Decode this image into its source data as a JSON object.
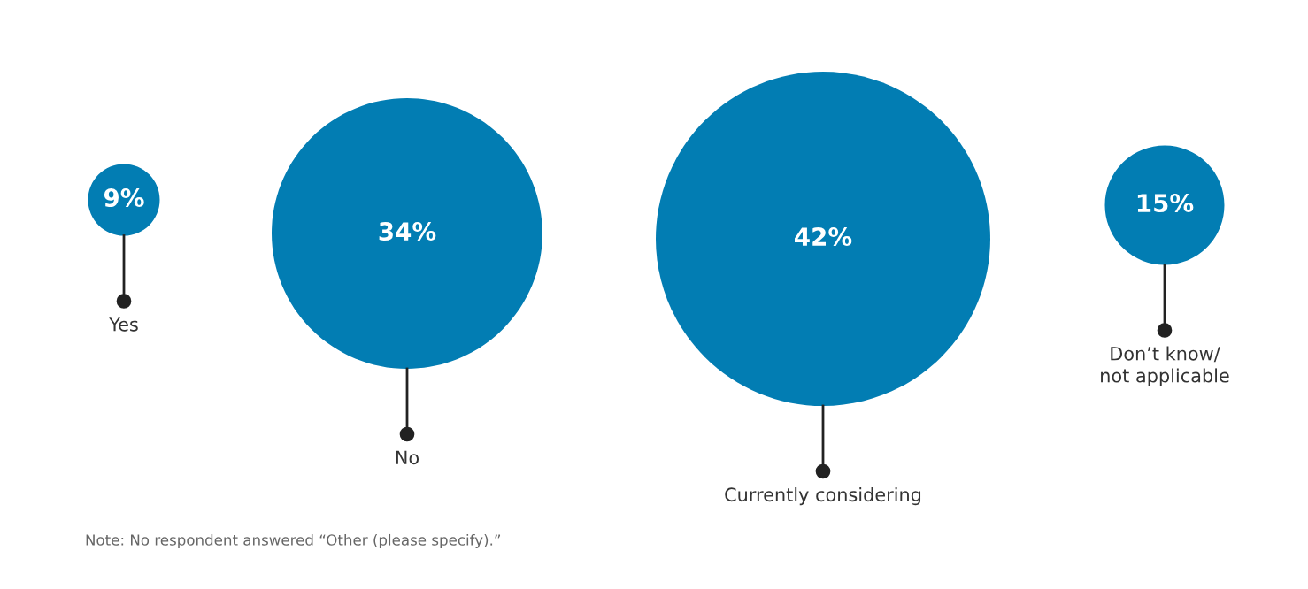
{
  "chart_data": {
    "type": "other",
    "categories": [
      "Yes",
      "No",
      "Currently considering",
      "Don’t know/\nnot applicable"
    ],
    "values": [
      9,
      34,
      42,
      15
    ],
    "value_labels": [
      "9%",
      "34%",
      "42%",
      "15%"
    ],
    "color": "#027db3",
    "annotations": [
      "Note: No respondent answered “Other (please specify).”"
    ]
  }
}
